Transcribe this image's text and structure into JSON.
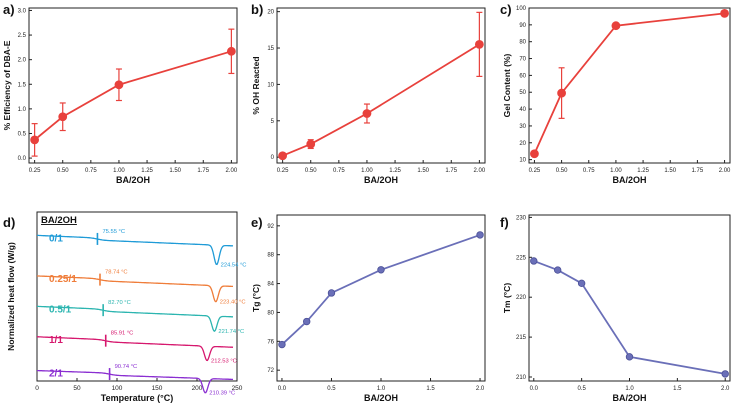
{
  "chart_data": [
    {
      "id": "a",
      "type": "line",
      "panel_label": "a)",
      "xlabel": "BA/2OH",
      "ylabel": "% Efficiency of DBA-E",
      "xlim": [
        0.2,
        2.05
      ],
      "ylim": [
        -0.1,
        3.05
      ],
      "xticks": [
        "0.25",
        "0.50",
        "0.75",
        "1.00",
        "1.25",
        "1.50",
        "1.75",
        "2.00"
      ],
      "yticks": [
        "0.0",
        "0.5",
        "1.0",
        "1.5",
        "2.0",
        "2.5",
        "3.0"
      ],
      "color": "#e8413c",
      "x": [
        0.25,
        0.5,
        1.0,
        2.0
      ],
      "y": [
        0.37,
        0.84,
        1.49,
        2.17
      ],
      "err": [
        0.33,
        0.28,
        0.32,
        0.45
      ]
    },
    {
      "id": "b",
      "type": "line",
      "panel_label": "b)",
      "xlabel": "BA/2OH",
      "ylabel": "% OH Reacted",
      "xlim": [
        0.2,
        2.05
      ],
      "ylim": [
        -0.8,
        20.5
      ],
      "xticks": [
        "0.25",
        "0.50",
        "0.75",
        "1.00",
        "1.25",
        "1.50",
        "1.75",
        "2.00"
      ],
      "yticks": [
        "0",
        "5",
        "10",
        "15",
        "20"
      ],
      "color": "#e8413c",
      "x": [
        0.25,
        0.5,
        1.0,
        2.0
      ],
      "y": [
        0.2,
        1.8,
        6.0,
        15.5
      ],
      "err": [
        0.3,
        0.6,
        1.3,
        4.4
      ]
    },
    {
      "id": "c",
      "type": "line",
      "panel_label": "c)",
      "xlabel": "BA/2OH",
      "ylabel": "Gel Content (%)",
      "xlim": [
        0.2,
        2.05
      ],
      "ylim": [
        8,
        100
      ],
      "xticks": [
        "0.25",
        "0.50",
        "0.75",
        "1.00",
        "1.25",
        "1.50",
        "1.75",
        "2.00"
      ],
      "yticks": [
        "10",
        "20",
        "30",
        "40",
        "50",
        "60",
        "70",
        "80",
        "90",
        "100"
      ],
      "color": "#e8413c",
      "x": [
        0.25,
        0.5,
        1.0,
        2.0
      ],
      "y": [
        13.5,
        49.5,
        89.5,
        96.8
      ],
      "err": [
        0,
        15,
        0,
        0
      ]
    },
    {
      "id": "d",
      "type": "line",
      "panel_label": "d)",
      "xlabel": "Temperature (°C)",
      "ylabel": "Normalized heat flow (W/g)",
      "xlim": [
        0,
        250
      ],
      "xticks": [
        "0",
        "50",
        "100",
        "150",
        "200",
        "250"
      ],
      "legend_title": "BA/2OH",
      "series": [
        {
          "name": "0/1",
          "color": "#1f9bd7",
          "tg": 75.55,
          "tg_label": "75.55 °C",
          "tm": 224.54,
          "tm_label": "224.54 °C",
          "baseline": 0.02,
          "slope": 0.05,
          "depth": 0.115
        },
        {
          "name": "0.25/1",
          "color": "#ef7d3a",
          "tg": 78.74,
          "tg_label": "78.74 °C",
          "tm": 223.4,
          "tm_label": "223.40 °C",
          "baseline": 0.26,
          "slope": 0.05,
          "depth": 0.095
        },
        {
          "name": "0.5/1",
          "color": "#2cb5b0",
          "tg": 82.7,
          "tg_label": "82.70 °C",
          "tm": 221.74,
          "tm_label": "221.74 °C",
          "baseline": 0.44,
          "slope": 0.05,
          "depth": 0.09
        },
        {
          "name": "1/1",
          "color": "#d6186e",
          "tg": 85.91,
          "tg_label": "85.91 °C",
          "tm": 212.53,
          "tm_label": "212.53 °C",
          "baseline": 0.62,
          "slope": 0.05,
          "depth": 0.085
        },
        {
          "name": "2/1",
          "color": "#8a2ed1",
          "tg": 90.74,
          "tg_label": "90.74 °C",
          "tm": 210.39,
          "tm_label": "210.39 °C",
          "baseline": 0.82,
          "slope": 0.04,
          "depth": 0.085
        }
      ]
    },
    {
      "id": "e",
      "type": "line",
      "panel_label": "e)",
      "xlabel": "BA/2OH",
      "ylabel": "Tg (°C)",
      "xlim": [
        -0.05,
        2.05
      ],
      "ylim": [
        70.5,
        93.5
      ],
      "xticks": [
        "0.0",
        "0.5",
        "1.0",
        "1.5",
        "2.0"
      ],
      "yticks": [
        "72",
        "76",
        "80",
        "84",
        "88",
        "92"
      ],
      "color": "#6a6fb8",
      "x": [
        0,
        0.25,
        0.5,
        1.0,
        2.0
      ],
      "y": [
        75.55,
        78.74,
        82.7,
        85.91,
        90.74
      ]
    },
    {
      "id": "f",
      "type": "line",
      "panel_label": "f)",
      "xlabel": "BA/2OH",
      "ylabel": "Tm (°C)",
      "xlim": [
        -0.05,
        2.05
      ],
      "ylim": [
        209.5,
        230.3
      ],
      "xticks": [
        "0.0",
        "0.5",
        "1.0",
        "1.5",
        "2.0"
      ],
      "yticks": [
        "210",
        "215",
        "220",
        "225",
        "230"
      ],
      "color": "#6a6fb8",
      "x": [
        0,
        0.25,
        0.5,
        1.0,
        2.0
      ],
      "y": [
        224.54,
        223.4,
        221.74,
        212.53,
        210.39
      ]
    }
  ]
}
